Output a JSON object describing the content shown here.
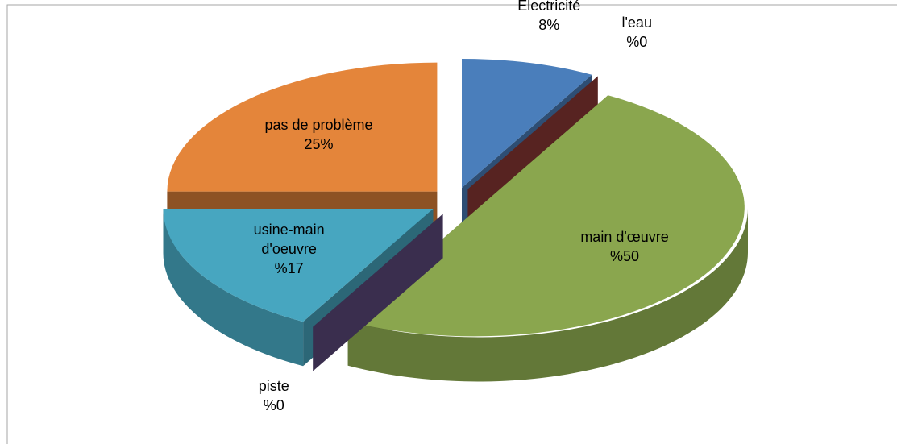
{
  "chart_data": {
    "type": "pie3d",
    "categories": [
      "Electricité",
      "l'eau",
      "main d'œuvre",
      "piste",
      "usine-main d'oeuvre",
      "pas de problème"
    ],
    "values": [
      8,
      0,
      50,
      0,
      17,
      25
    ],
    "value_labels": [
      "8%",
      "%0",
      "%50",
      "%0",
      "%17",
      "25%"
    ],
    "colors": [
      "#4a7ebb",
      "#8c3836",
      "#8aa64e",
      "#5e4a7e",
      "#47a6c0",
      "#e4853a"
    ]
  }
}
